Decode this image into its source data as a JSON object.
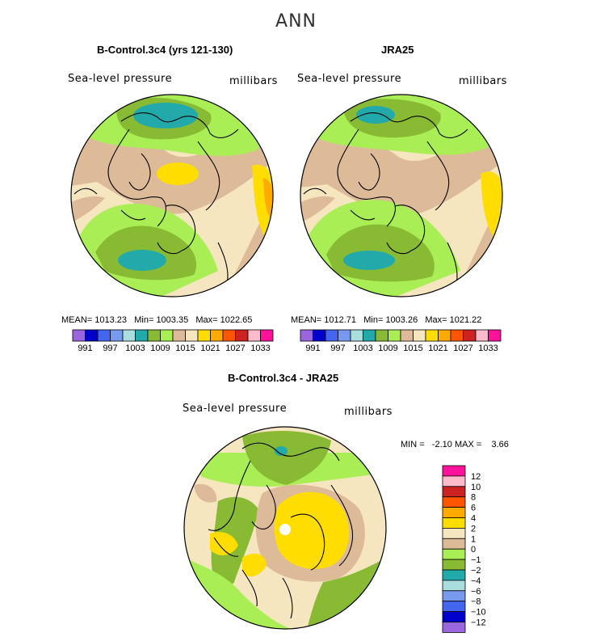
{
  "figure_title": "ANN",
  "palette": [
    "#9966dd",
    "#0000cc",
    "#4466ee",
    "#7799ee",
    "#aadddd",
    "#22aaaa",
    "#88bb33",
    "#aaee55",
    "#ddbb99",
    "#f5e6c0",
    "#ffdd00",
    "#ffaa00",
    "#ff5500",
    "#cc2222",
    "#ffbbcc",
    "#ff1199"
  ],
  "land_outline_color": "#000000",
  "panels": [
    {
      "id": "model",
      "title": "B-Control.3c4 (yrs 121-130)",
      "variable": "Sea-level pressure",
      "units": "millibars",
      "stats": {
        "mean_label": "MEAN=",
        "mean": "1013.23",
        "min_label": "Min=",
        "min": "1003.35",
        "max_label": "Max=",
        "max": "1022.65"
      }
    },
    {
      "id": "obs",
      "title": "JRA25",
      "variable": "Sea-level pressure",
      "units": "millibars",
      "stats": {
        "mean_label": "MEAN=",
        "mean": "1012.71",
        "min_label": "Min=",
        "min": "1003.26",
        "max_label": "Max=",
        "max": "1021.22"
      }
    },
    {
      "id": "diff",
      "title": "B-Control.3c4 - JRA25",
      "variable": "Sea-level pressure",
      "units": "millibars",
      "stats_text": "MIN =   -2.10 MAX =    3.66"
    }
  ],
  "chart_data": [
    {
      "type": "heatmap",
      "title": "B-Control.3c4 (yrs 121-130)",
      "subtitle": "Sea-level pressure",
      "units": "millibars",
      "projection": "polar stereographic (Northern Hemisphere)",
      "mean": 1013.23,
      "min": 1003.35,
      "max": 1022.65,
      "colorbar_tick_labels": [
        "991",
        "997",
        "1003",
        "1009",
        "1015",
        "1021",
        "1027",
        "1033"
      ],
      "colorbar_levels": [
        991,
        994,
        997,
        1000,
        1003,
        1006,
        1009,
        1012,
        1015,
        1018,
        1021,
        1024,
        1027,
        1030,
        1033
      ]
    },
    {
      "type": "heatmap",
      "title": "JRA25",
      "subtitle": "Sea-level pressure",
      "units": "millibars",
      "projection": "polar stereographic (Northern Hemisphere)",
      "mean": 1012.71,
      "min": 1003.26,
      "max": 1021.22,
      "colorbar_tick_labels": [
        "991",
        "997",
        "1003",
        "1009",
        "1015",
        "1021",
        "1027",
        "1033"
      ],
      "colorbar_levels": [
        991,
        994,
        997,
        1000,
        1003,
        1006,
        1009,
        1012,
        1015,
        1018,
        1021,
        1024,
        1027,
        1030,
        1033
      ]
    },
    {
      "type": "heatmap",
      "title": "B-Control.3c4 - JRA25",
      "subtitle": "Sea-level pressure",
      "units": "millibars",
      "projection": "polar stereographic (Northern Hemisphere)",
      "min": -2.1,
      "max": 3.66,
      "colorbar_tick_labels": [
        "12",
        "10",
        "8",
        "6",
        "4",
        "2",
        "1",
        "0",
        "−1",
        "−2",
        "−4",
        "−6",
        "−8",
        "−10",
        "−12"
      ]
    }
  ]
}
